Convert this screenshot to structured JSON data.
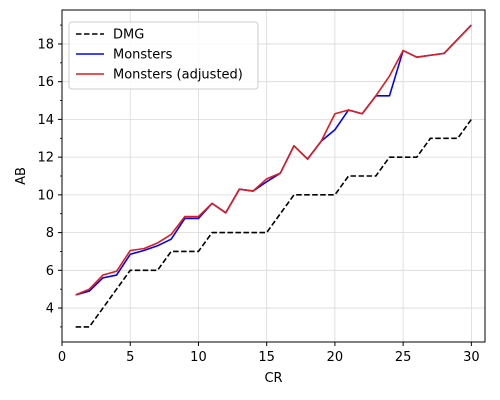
{
  "chart_data": {
    "type": "line",
    "title": "",
    "xlabel": "CR",
    "ylabel": "AB",
    "xlim": [
      0,
      31
    ],
    "ylim": [
      2.2,
      19.8
    ],
    "xticks": [
      0,
      5,
      10,
      15,
      20,
      25,
      30
    ],
    "yticks": [
      4,
      6,
      8,
      10,
      12,
      14,
      16,
      18
    ],
    "grid": true,
    "legend_position": "top-left",
    "series": [
      {
        "name": "DMG",
        "color": "#000000",
        "dash": "dashed",
        "points": [
          [
            1,
            3
          ],
          [
            2,
            3
          ],
          [
            3,
            4
          ],
          [
            4,
            5
          ],
          [
            5,
            6
          ],
          [
            6,
            6
          ],
          [
            7,
            6
          ],
          [
            8,
            7
          ],
          [
            9,
            7
          ],
          [
            10,
            7
          ],
          [
            11,
            8
          ],
          [
            12,
            8
          ],
          [
            13,
            8
          ],
          [
            14,
            8
          ],
          [
            15,
            8
          ],
          [
            16,
            9
          ],
          [
            17,
            10
          ],
          [
            18,
            10
          ],
          [
            19,
            10
          ],
          [
            20,
            10
          ],
          [
            21,
            11
          ],
          [
            22,
            11
          ],
          [
            23,
            11
          ],
          [
            24,
            12
          ],
          [
            25,
            12
          ],
          [
            26,
            12
          ],
          [
            27,
            13
          ],
          [
            28,
            13
          ],
          [
            29,
            13
          ],
          [
            30,
            14
          ]
        ]
      },
      {
        "name": "Monsters",
        "color": "#0000ff",
        "dash": "solid",
        "points": [
          [
            1,
            4.7
          ],
          [
            2,
            4.9
          ],
          [
            3,
            5.6
          ],
          [
            4,
            5.75
          ],
          [
            5,
            6.85
          ],
          [
            6,
            7.05
          ],
          [
            7,
            7.3
          ],
          [
            8,
            7.65
          ],
          [
            9,
            8.75
          ],
          [
            10,
            8.75
          ],
          [
            11,
            9.55
          ],
          [
            12,
            9.05
          ],
          [
            13,
            10.3
          ],
          [
            14,
            10.2
          ],
          [
            15,
            10.7
          ],
          [
            16,
            11.15
          ],
          [
            17,
            12.6
          ],
          [
            18,
            11.9
          ],
          [
            19,
            12.85
          ],
          [
            20,
            13.45
          ],
          [
            21,
            14.5
          ],
          [
            22,
            14.3
          ],
          [
            23,
            15.25
          ],
          [
            24,
            15.25
          ],
          [
            25,
            17.65
          ],
          [
            26,
            17.3
          ],
          [
            27,
            17.4
          ],
          [
            28,
            17.5
          ],
          [
            29,
            18.25
          ],
          [
            30,
            19.0
          ]
        ]
      },
      {
        "name": "Monsters (adjusted)",
        "color": "#e31a1c",
        "dash": "solid",
        "points": [
          [
            1,
            4.7
          ],
          [
            2,
            5.0
          ],
          [
            3,
            5.75
          ],
          [
            4,
            5.95
          ],
          [
            5,
            7.05
          ],
          [
            6,
            7.15
          ],
          [
            7,
            7.45
          ],
          [
            8,
            7.9
          ],
          [
            9,
            8.85
          ],
          [
            10,
            8.85
          ],
          [
            11,
            9.55
          ],
          [
            12,
            9.05
          ],
          [
            13,
            10.3
          ],
          [
            14,
            10.2
          ],
          [
            15,
            10.85
          ],
          [
            16,
            11.15
          ],
          [
            17,
            12.6
          ],
          [
            18,
            11.9
          ],
          [
            19,
            12.85
          ],
          [
            20,
            14.3
          ],
          [
            21,
            14.5
          ],
          [
            22,
            14.3
          ],
          [
            23,
            15.25
          ],
          [
            24,
            16.3
          ],
          [
            25,
            17.65
          ],
          [
            26,
            17.3
          ],
          [
            27,
            17.4
          ],
          [
            28,
            17.5
          ],
          [
            29,
            18.25
          ],
          [
            30,
            19.0
          ]
        ]
      }
    ]
  }
}
